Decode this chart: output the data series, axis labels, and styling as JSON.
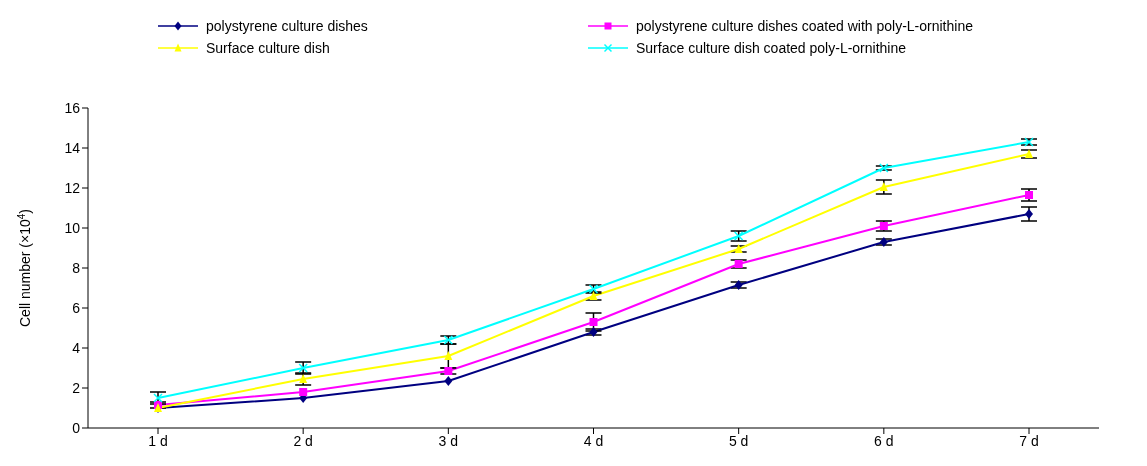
{
  "chart_data": {
    "type": "line",
    "ylabel": "Cell number (×10$^{4}$)",
    "categories": [
      "1 d",
      "2 d",
      "3 d",
      "4 d",
      "5 d",
      "6 d",
      "7 d"
    ],
    "ylim": [
      0,
      16
    ],
    "yticks": [
      0,
      2,
      4,
      6,
      8,
      10,
      12,
      14,
      16
    ],
    "grid": false,
    "legend": "top",
    "line_style": "solid",
    "series": [
      {
        "name": "polystyrene culture dishes",
        "color": "#000080",
        "marker": "diamond",
        "values": [
          1.0,
          1.5,
          2.35,
          4.8,
          7.15,
          9.3,
          10.7
        ],
        "errors": [
          null,
          null,
          null,
          0.15,
          0.15,
          0.15,
          0.35
        ]
      },
      {
        "name": "polystyrene culture dishes coated with poly-L-ornithine",
        "color": "#ff00ff",
        "marker": "square",
        "values": [
          1.15,
          1.8,
          2.85,
          5.3,
          8.2,
          10.1,
          11.65
        ],
        "errors": [
          0.15,
          null,
          0.15,
          0.45,
          0.2,
          0.25,
          0.3
        ]
      },
      {
        "name": "Surface culture dish",
        "color": "#ffff00",
        "marker": "triangle",
        "values": [
          1.0,
          2.45,
          3.6,
          6.6,
          8.95,
          12.05,
          13.7
        ],
        "errors": [
          null,
          0.3,
          0.6,
          0.2,
          0.15,
          0.35,
          0.2
        ]
      },
      {
        "name": "Surface culture dish coated poly-L-ornithine",
        "color": "#00ffff",
        "marker": "cross",
        "values": [
          1.5,
          3.0,
          4.4,
          6.95,
          9.6,
          13.0,
          14.3
        ],
        "errors": [
          0.3,
          0.3,
          0.2,
          0.2,
          0.25,
          0.1,
          0.15
        ]
      }
    ]
  }
}
